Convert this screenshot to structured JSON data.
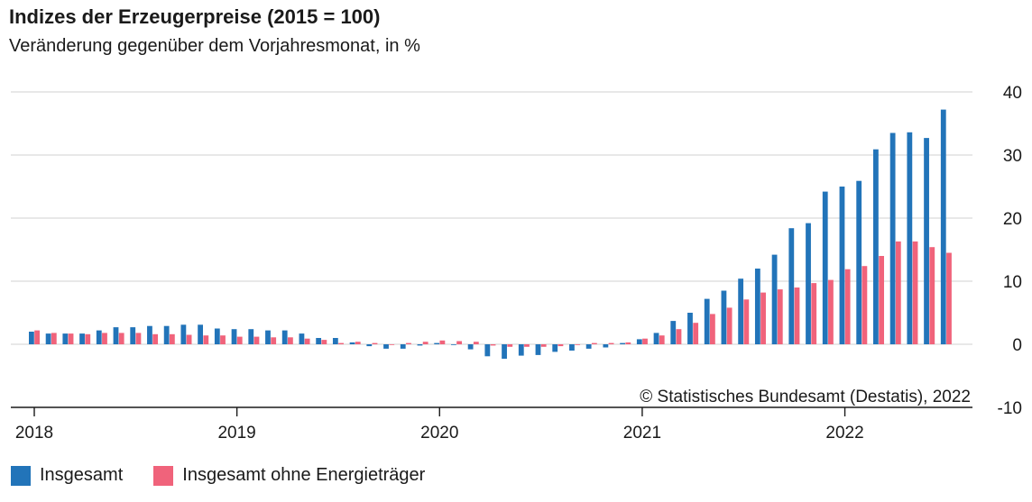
{
  "chart_data": {
    "type": "bar",
    "title": "Indizes der Erzeugerpreise (2015 = 100)",
    "subtitle": "Veränderung gegenüber dem Vorjahresmonat, in %",
    "ylim": [
      -10,
      40
    ],
    "yticks": [
      "40",
      "30",
      "20",
      "10",
      "0",
      "-10"
    ],
    "xtick_labels": [
      "2018",
      "2019",
      "2020",
      "2021",
      "2022"
    ],
    "grid": true,
    "legend_position": "bottom-left",
    "x": [
      "2018-01",
      "2018-02",
      "2018-03",
      "2018-04",
      "2018-05",
      "2018-06",
      "2018-07",
      "2018-08",
      "2018-09",
      "2018-10",
      "2018-11",
      "2018-12",
      "2019-01",
      "2019-02",
      "2019-03",
      "2019-04",
      "2019-05",
      "2019-06",
      "2019-07",
      "2019-08",
      "2019-09",
      "2019-10",
      "2019-11",
      "2019-12",
      "2020-01",
      "2020-02",
      "2020-03",
      "2020-04",
      "2020-05",
      "2020-06",
      "2020-07",
      "2020-08",
      "2020-09",
      "2020-10",
      "2020-11",
      "2020-12",
      "2021-01",
      "2021-02",
      "2021-03",
      "2021-04",
      "2021-05",
      "2021-06",
      "2021-07",
      "2021-08",
      "2021-09",
      "2021-10",
      "2021-11",
      "2021-12",
      "2022-01",
      "2022-02",
      "2022-03",
      "2022-04",
      "2022-05",
      "2022-06",
      "2022-07"
    ],
    "series": [
      {
        "name": "Insgesamt",
        "color": "#2274b9",
        "values": [
          2.0,
          1.7,
          1.7,
          1.7,
          2.2,
          2.7,
          2.7,
          2.9,
          2.9,
          3.1,
          3.1,
          2.5,
          2.4,
          2.4,
          2.2,
          2.2,
          1.7,
          1.0,
          1.0,
          0.3,
          -0.3,
          -0.7,
          -0.7,
          -0.2,
          0.2,
          -0.1,
          -0.8,
          -1.9,
          -2.3,
          -1.8,
          -1.7,
          -1.2,
          -1.0,
          -0.7,
          -0.5,
          0.2,
          0.8,
          1.8,
          3.7,
          5.0,
          7.2,
          8.5,
          10.4,
          12.0,
          14.2,
          18.4,
          19.2,
          24.2,
          25.0,
          25.9,
          30.9,
          33.5,
          33.6,
          32.7,
          37.2
        ]
      },
      {
        "name": "Insgesamt ohne Energieträger",
        "color": "#f0637b",
        "values": [
          2.2,
          1.8,
          1.7,
          1.6,
          1.8,
          1.8,
          1.8,
          1.6,
          1.6,
          1.5,
          1.4,
          1.4,
          1.2,
          1.2,
          1.1,
          1.1,
          0.9,
          0.7,
          0.2,
          0.4,
          0.2,
          -0.1,
          0.2,
          0.4,
          0.6,
          0.5,
          0.4,
          -0.2,
          -0.4,
          -0.4,
          -0.4,
          -0.3,
          -0.1,
          0.2,
          0.2,
          0.3,
          0.9,
          1.4,
          2.4,
          3.4,
          4.8,
          5.8,
          7.1,
          8.2,
          8.7,
          9.0,
          9.7,
          10.2,
          11.9,
          12.4,
          14.0,
          16.3,
          16.3,
          15.4,
          14.5
        ]
      }
    ]
  },
  "copyright": "© Statistisches Bundesamt (Destatis), 2022"
}
